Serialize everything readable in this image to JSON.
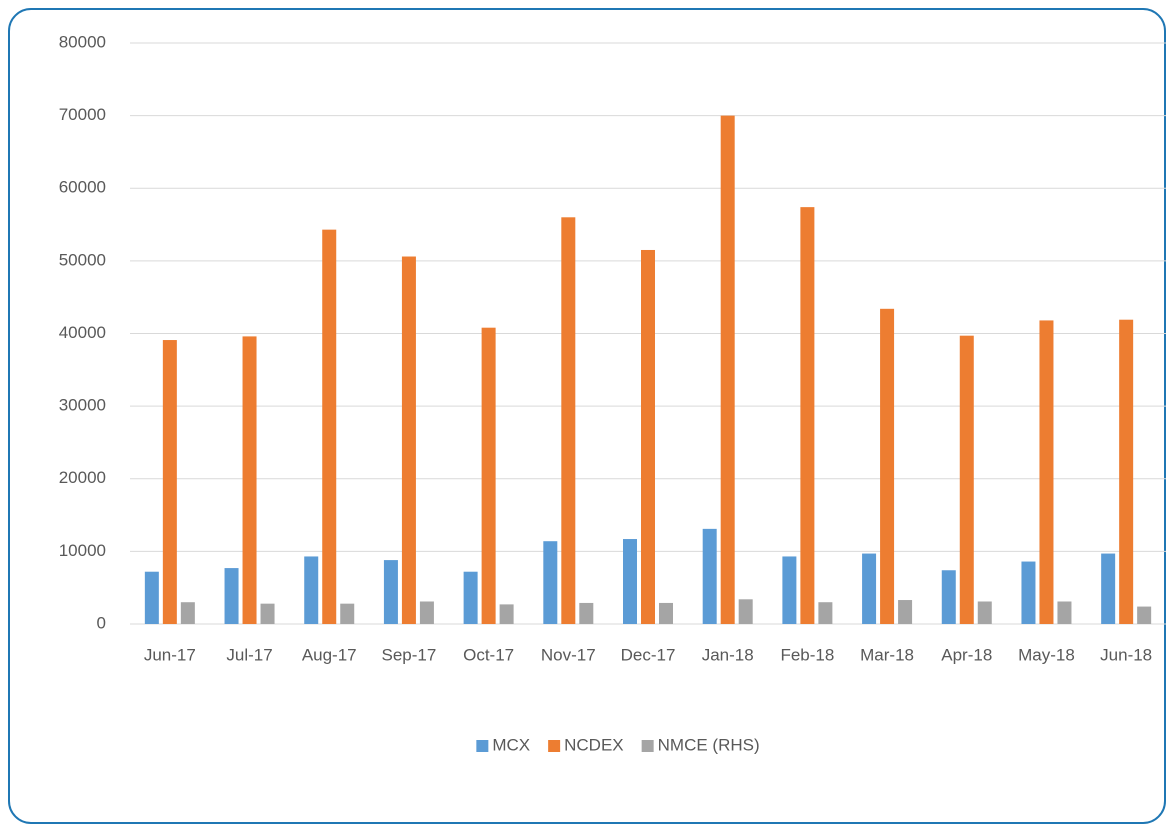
{
  "chart_data": {
    "type": "bar",
    "categories": [
      "Jun-17",
      "Jul-17",
      "Aug-17",
      "Sep-17",
      "Oct-17",
      "Nov-17",
      "Dec-17",
      "Jan-18",
      "Feb-18",
      "Mar-18",
      "Apr-18",
      "May-18",
      "Jun-18"
    ],
    "series": [
      {
        "name": "MCX",
        "color": "#5b9bd5",
        "values": [
          7200,
          7700,
          9300,
          8800,
          7200,
          11400,
          11700,
          13100,
          9300,
          9700,
          7400,
          8600,
          9700
        ]
      },
      {
        "name": "NCDEX",
        "color": "#ed7d31",
        "values": [
          39100,
          39600,
          54300,
          50600,
          40800,
          56000,
          51500,
          70000,
          57400,
          43400,
          39700,
          41800,
          41900
        ]
      },
      {
        "name": "NMCE (RHS)",
        "color": "#a5a5a5",
        "values": [
          3000,
          2800,
          2800,
          3100,
          2700,
          2900,
          2900,
          3400,
          3000,
          3300,
          3100,
          3100,
          2400
        ]
      }
    ],
    "ylim": [
      0,
      80000
    ],
    "yticks": [
      0,
      10000,
      20000,
      30000,
      40000,
      50000,
      60000,
      70000,
      80000
    ],
    "grid": true,
    "legend": "bottom"
  }
}
